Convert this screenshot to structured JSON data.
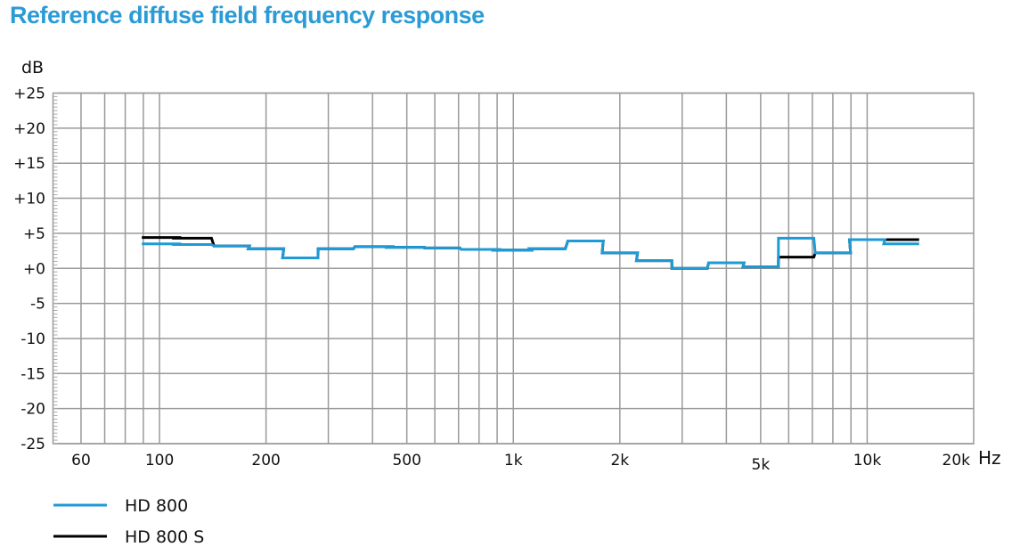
{
  "chart_data": {
    "type": "line",
    "title": "Reference diffuse field frequency response",
    "xlabel": "Hz",
    "ylabel": "dB",
    "xscale": "log",
    "xlim": [
      50,
      20000
    ],
    "ylim": [
      -25,
      25
    ],
    "grid": true,
    "legend_position": "bottom-left",
    "x_tick_labels": [
      {
        "value": 60,
        "label": "60"
      },
      {
        "value": 100,
        "label": "100"
      },
      {
        "value": 200,
        "label": "200"
      },
      {
        "value": 500,
        "label": "500"
      },
      {
        "value": 1000,
        "label": "1k"
      },
      {
        "value": 2000,
        "label": "2k"
      },
      {
        "value": 5000,
        "label": "5k"
      },
      {
        "value": 10000,
        "label": "10k"
      },
      {
        "value": 20000,
        "label": "20k"
      }
    ],
    "y_ticks": [
      25,
      20,
      15,
      10,
      5,
      0,
      -5,
      -10,
      -15,
      -20,
      -25
    ],
    "y_tick_labels": [
      "+25",
      "+20",
      "+15",
      "+10",
      "+5",
      "+0",
      "-5",
      "-10",
      "-15",
      "-20",
      "-25"
    ],
    "band_centers_hz": [
      100,
      125,
      160,
      200,
      250,
      315,
      400,
      500,
      630,
      800,
      1000,
      1250,
      1600,
      2000,
      2500,
      3150,
      4000,
      5000,
      6300,
      8000,
      10000,
      12500
    ],
    "series": [
      {
        "name": "HD 800",
        "color": "#1e9ad6",
        "values": [
          3.5,
          3.4,
          3.2,
          2.8,
          1.5,
          2.8,
          3.1,
          3.0,
          2.9,
          2.7,
          2.6,
          2.8,
          3.9,
          2.2,
          1.1,
          0.0,
          0.8,
          0.2,
          4.3,
          2.2,
          4.1,
          3.5
        ]
      },
      {
        "name": "HD 800 S",
        "color": "#000000",
        "values": [
          4.4,
          4.3,
          3.2,
          2.8,
          1.5,
          2.8,
          3.1,
          3.0,
          2.9,
          2.7,
          2.6,
          2.8,
          3.9,
          2.2,
          1.1,
          0.0,
          0.8,
          0.2,
          1.6,
          2.2,
          4.1,
          4.1
        ]
      }
    ]
  }
}
